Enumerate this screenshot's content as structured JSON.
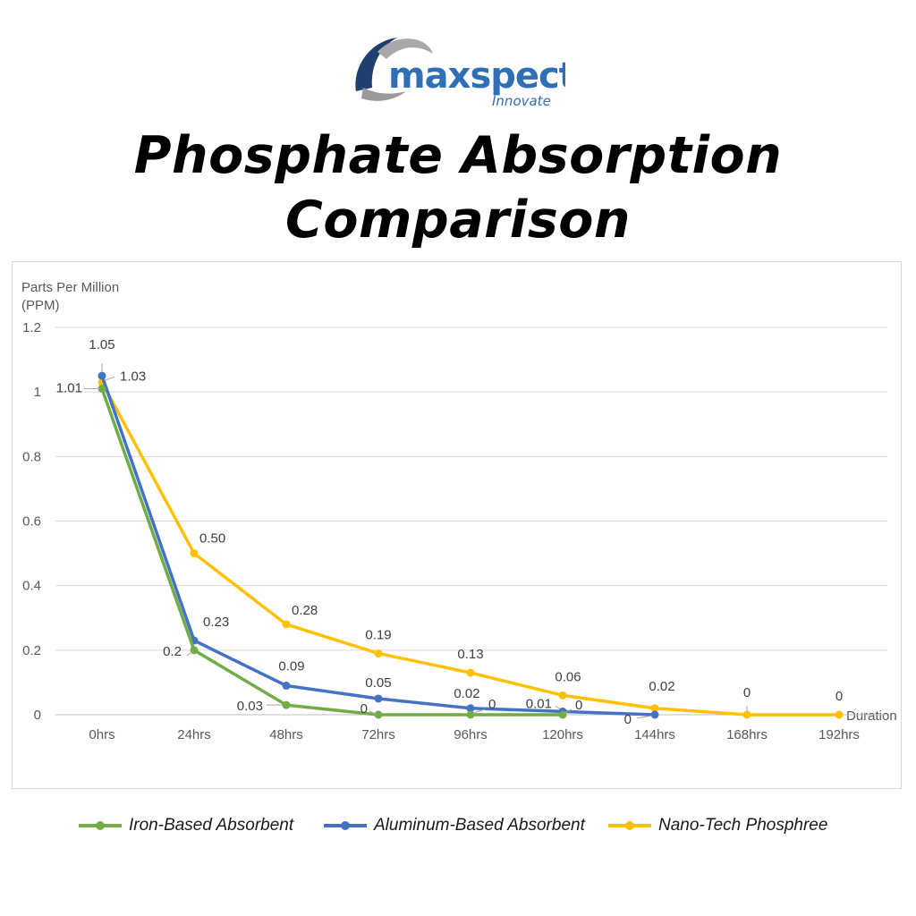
{
  "brand": {
    "name": "maxspect",
    "tagline": "Innovate",
    "colors": {
      "dark": "#1f3f6e",
      "light": "#2e6fb5",
      "swoosh": "#a8a8a8"
    }
  },
  "title": {
    "line1": "Phosphate Absorption",
    "line2": "Comparison"
  },
  "chart_data": {
    "type": "line",
    "title": "",
    "ylabel_line1": "Parts Per Million",
    "ylabel_line2": "(PPM)",
    "xlabel": "Duration",
    "categories": [
      "0hrs",
      "24hrs",
      "48hrs",
      "72hrs",
      "96hrs",
      "120hrs",
      "144hrs",
      "168hrs",
      "192hrs"
    ],
    "ylim": [
      0,
      1.2
    ],
    "yticks": [
      "0",
      "0.2",
      "0.4",
      "0.6",
      "0.8",
      "1",
      "1.2"
    ],
    "grid": true,
    "legend_position": "bottom",
    "series": [
      {
        "name": "Iron-Based Absorbent",
        "color": "#70ad47",
        "values": [
          1.01,
          0.2,
          0.03,
          0,
          0,
          0,
          null,
          null,
          null
        ],
        "labels": [
          "1.01",
          "0.2",
          "0.03",
          "0",
          "0",
          "0",
          "",
          "",
          ""
        ]
      },
      {
        "name": "Aluminum-Based Absorbent",
        "color": "#4472c4",
        "values": [
          1.05,
          0.23,
          0.09,
          0.05,
          0.02,
          0.01,
          0,
          null,
          null
        ],
        "labels": [
          "1.05",
          "0.23",
          "0.09",
          "0.05",
          "0.02",
          "0.01",
          "0",
          "",
          ""
        ]
      },
      {
        "name": "Nano-Tech Phosphree",
        "color": "#ffc000",
        "values": [
          1.03,
          0.5,
          0.28,
          0.19,
          0.13,
          0.06,
          0.02,
          0,
          0
        ],
        "labels": [
          "1.03",
          "0.50",
          "0.28",
          "0.19",
          "0.13",
          "0.06",
          "0.02",
          "0",
          "0"
        ]
      }
    ]
  }
}
